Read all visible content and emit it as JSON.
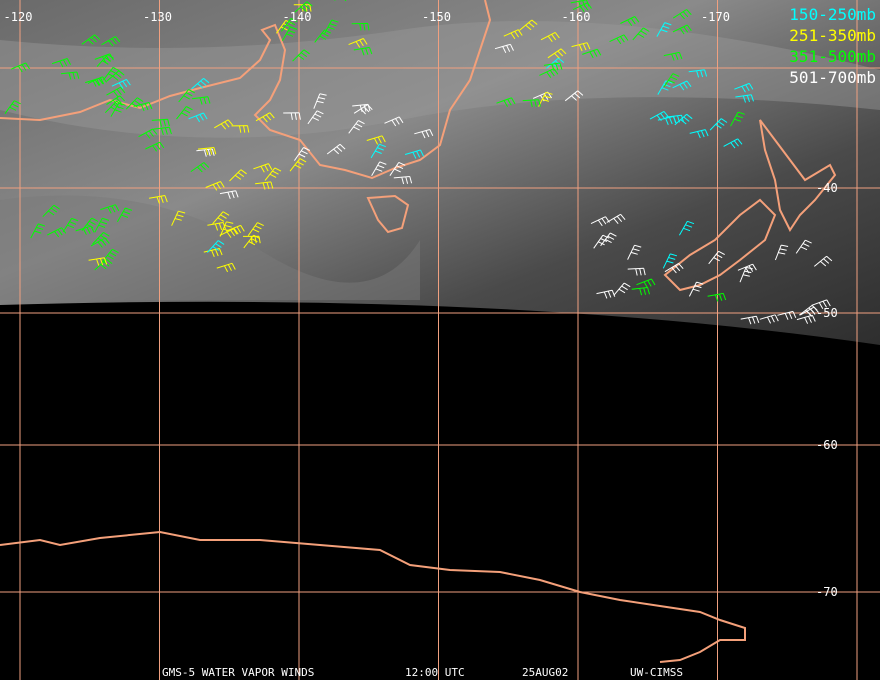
{
  "map": {
    "longitude_labels": [
      "-120",
      "-130",
      "-140",
      "-150",
      "-160",
      "-170"
    ],
    "latitude_labels": [
      "-40",
      "-50",
      "-60",
      "-70"
    ],
    "legend": [
      {
        "label": "150-250mb",
        "color": "#00ffff"
      },
      {
        "label": "251-350mb",
        "color": "#ffff00"
      },
      {
        "label": "351-500mb",
        "color": "#00ff00"
      },
      {
        "label": "501-700mb",
        "color": "#ffffff"
      }
    ],
    "footer": [
      "GMS-5 WATER VAPOR WINDS",
      "12:00 UTC",
      "25AUG02",
      "UW-CIMSS"
    ]
  }
}
